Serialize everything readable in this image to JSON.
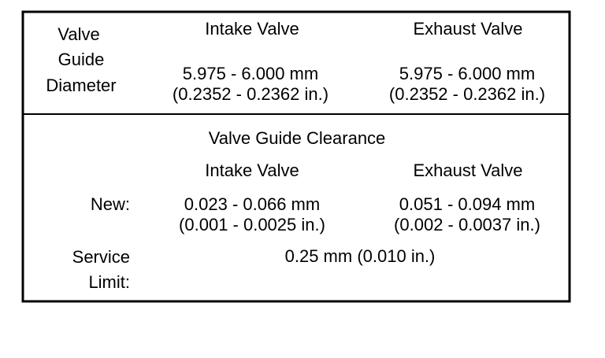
{
  "diameter": {
    "label": [
      "Valve",
      "Guide",
      "Diameter"
    ],
    "columns": [
      "Intake Valve",
      "Exhaust Valve"
    ],
    "values": [
      [
        "5.975 - 6.000 mm",
        "(0.2352 - 0.2362 in.)"
      ],
      [
        "5.975 - 6.000 mm",
        "(0.2352 - 0.2362 in.)"
      ]
    ]
  },
  "clearance": {
    "title": "Valve Guide Clearance",
    "columns": [
      "Intake Valve",
      "Exhaust Valve"
    ],
    "new": {
      "label": "New:",
      "values": [
        [
          "0.023 - 0.066 mm",
          "(0.001 - 0.0025 in.)"
        ],
        [
          "0.051 - 0.094 mm",
          "(0.002 - 0.0037 in.)"
        ]
      ]
    },
    "service_limit": {
      "label": [
        "Service",
        "Limit:"
      ],
      "value": "0.25 mm (0.010 in.)"
    }
  }
}
